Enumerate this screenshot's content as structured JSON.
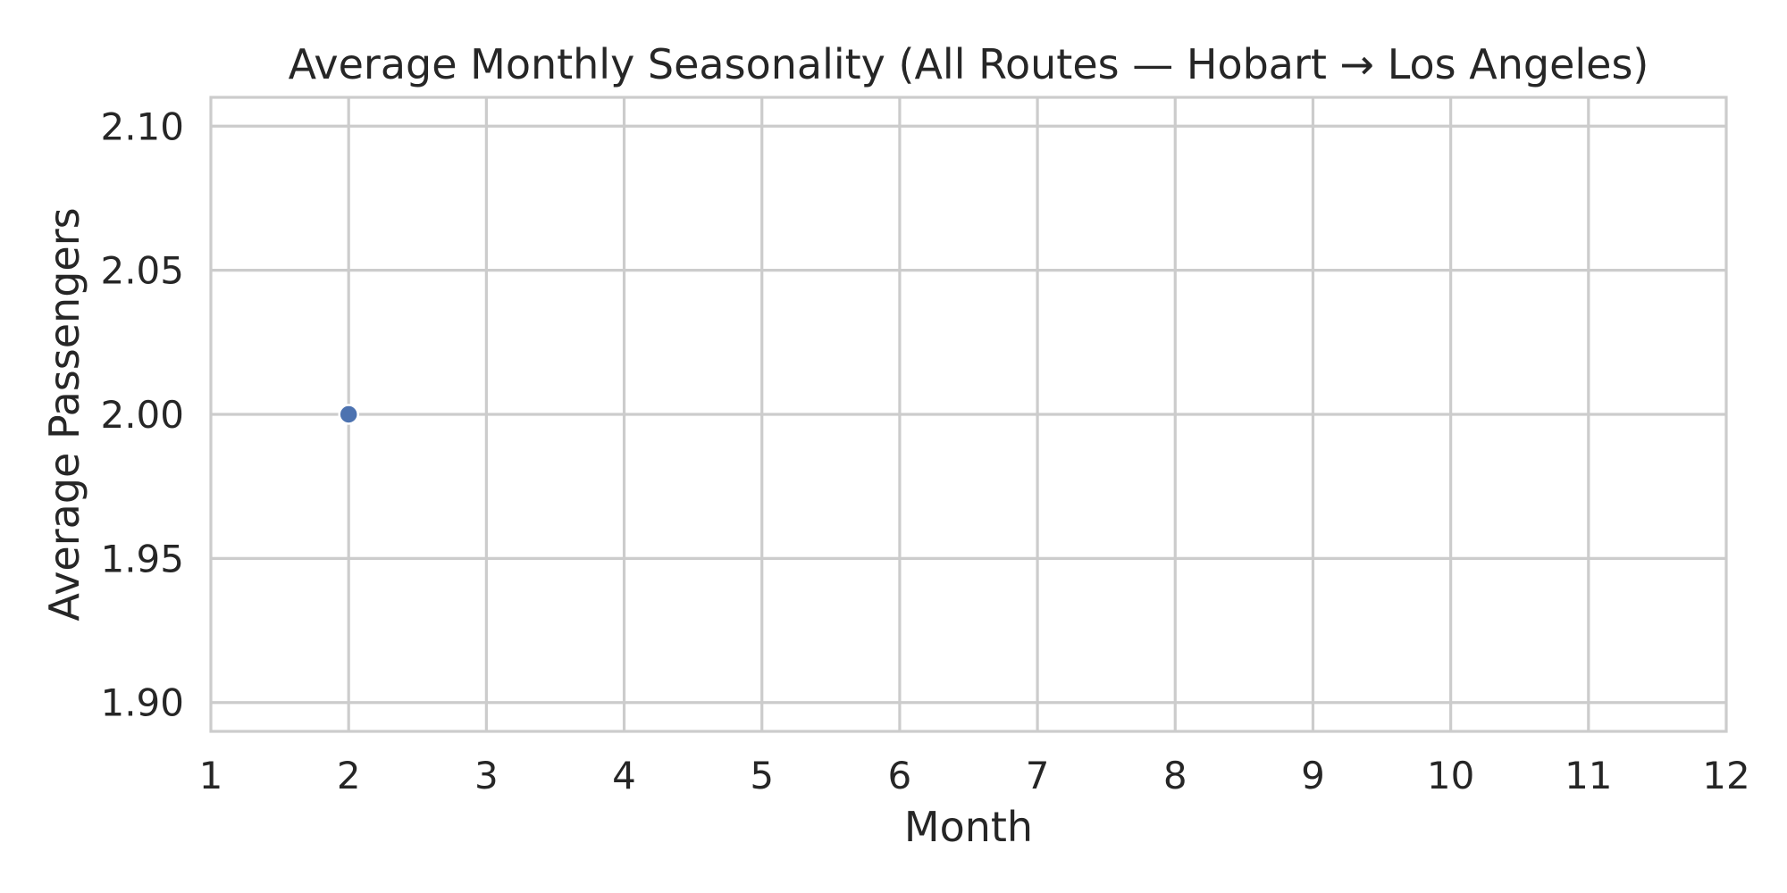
{
  "chart_data": {
    "type": "scatter",
    "title": "Average Monthly Seasonality (All Routes — Hobart → Los Angeles)",
    "xlabel": "Month",
    "ylabel": "Average Passengers",
    "xlim": [
      1,
      12
    ],
    "ylim": [
      1.89,
      2.11
    ],
    "xticks": [
      1,
      2,
      3,
      4,
      5,
      6,
      7,
      8,
      9,
      10,
      11,
      12
    ],
    "yticks": [
      1.9,
      1.95,
      2.0,
      2.05,
      2.1
    ],
    "ytick_decimals": 2,
    "grid": true,
    "legend": "none",
    "series": [
      {
        "color": "#4c72b0",
        "points": [
          {
            "x": 2,
            "y": 2.0
          }
        ]
      }
    ]
  }
}
